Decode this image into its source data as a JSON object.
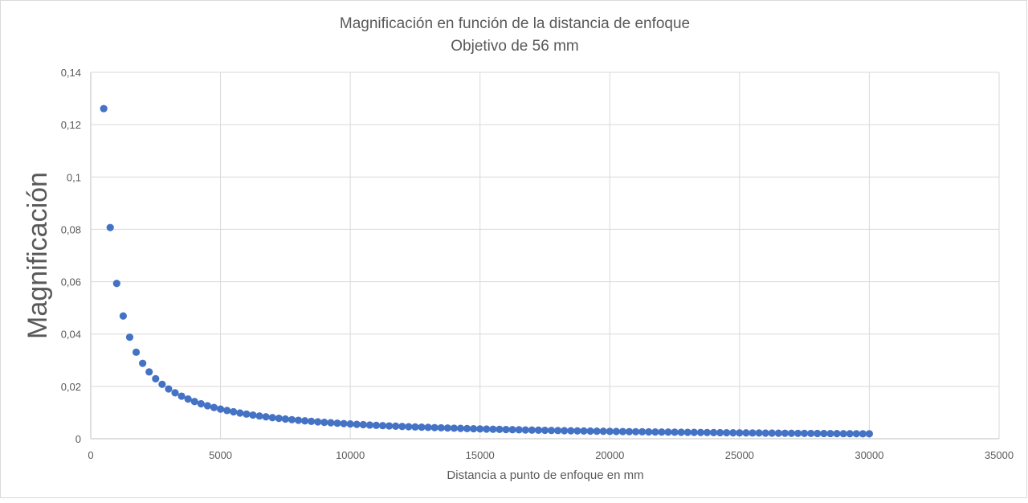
{
  "chart_data": {
    "type": "scatter",
    "title": "Magnificación en función de la distancia de enfoque",
    "subtitle": "Objetivo de 56 mm",
    "xlabel": "Distancia a punto de enfoque en mm",
    "ylabel": "Magnificación",
    "xlim": [
      0,
      35000
    ],
    "ylim": [
      0,
      0.14
    ],
    "x_ticks": [
      "0",
      "5000",
      "10000",
      "15000",
      "20000",
      "25000",
      "30000",
      "35000"
    ],
    "y_ticks": [
      "0",
      "0,02",
      "0,04",
      "0,06",
      "0,08",
      "0,1",
      "0,12",
      "0,14"
    ],
    "grid": true,
    "legend": "none",
    "marker_color": "#4472c4",
    "focal_length_mm": 56,
    "x_start": 500,
    "x_end": 30000,
    "x_step": 250
  }
}
